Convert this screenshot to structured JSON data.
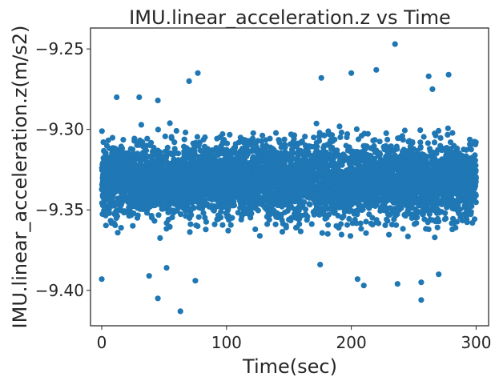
{
  "chart_data": {
    "type": "scatter",
    "title": "IMU.linear_acceleration.z vs Time",
    "xlabel": "Time(sec)",
    "ylabel": "IMU.linear_acceleration.z(m/s2)",
    "xlim": [
      -9,
      310
    ],
    "ylim": [
      -9.422,
      -9.237
    ],
    "xticks": [
      0,
      100,
      200,
      300
    ],
    "xtick_labels": [
      "0",
      "100",
      "200",
      "300"
    ],
    "yticks": [
      -9.25,
      -9.3,
      -9.35,
      -9.4
    ],
    "ytick_labels": [
      "−9.25",
      "−9.30",
      "−9.35",
      "−9.40"
    ],
    "grid": false,
    "legend": "none",
    "series": [
      {
        "color": "#1f77b4",
        "x_range": [
          0,
          300
        ],
        "dense_band": [
          -9.357,
          -9.307
        ],
        "outliers": [
          {
            "x": 235,
            "y": -9.247
          },
          {
            "x": 220,
            "y": -9.263
          },
          {
            "x": 278,
            "y": -9.266
          },
          {
            "x": 77,
            "y": -9.265
          },
          {
            "x": 70,
            "y": -9.27
          },
          {
            "x": 200,
            "y": -9.265
          },
          {
            "x": 176,
            "y": -9.268
          },
          {
            "x": 262,
            "y": -9.267
          },
          {
            "x": 265,
            "y": -9.275
          },
          {
            "x": 12,
            "y": -9.28
          },
          {
            "x": 30,
            "y": -9.28
          },
          {
            "x": 45,
            "y": -9.282
          },
          {
            "x": 63,
            "y": -9.413
          },
          {
            "x": 45,
            "y": -9.405
          },
          {
            "x": 256,
            "y": -9.406
          },
          {
            "x": 237,
            "y": -9.396
          },
          {
            "x": 205,
            "y": -9.393
          },
          {
            "x": 210,
            "y": -9.397
          },
          {
            "x": 0,
            "y": -9.393
          },
          {
            "x": 38,
            "y": -9.391
          },
          {
            "x": 52,
            "y": -9.386
          },
          {
            "x": 270,
            "y": -9.39
          },
          {
            "x": 256,
            "y": -9.395
          },
          {
            "x": 175,
            "y": -9.384
          },
          {
            "x": 75,
            "y": -9.394
          }
        ]
      }
    ]
  }
}
